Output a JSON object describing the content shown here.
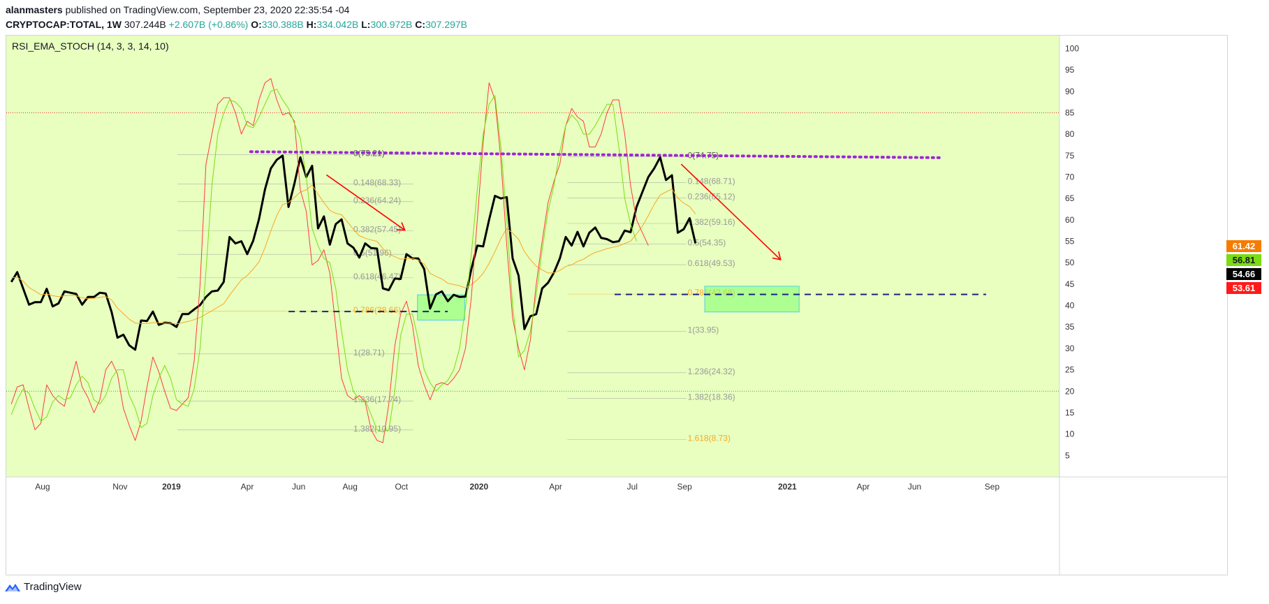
{
  "header": {
    "author": "alanmasters",
    "published": " published on TradingView.com, September 23, 2020 22:35:54 -04",
    "symbol": "CRYPTOCAP:TOTAL, 1W",
    "last": "307.244B",
    "change": "+2.607B (+0.86%)",
    "o_label": "O:",
    "o_val": "330.388B",
    "h_label": "H:",
    "h_val": "334.042B",
    "l_label": "L:",
    "l_val": "300.972B",
    "c_label": "C:",
    "c_val": "307.297B"
  },
  "indicator": {
    "label": "RSI_EMA_STOCH (14, 3, 3, 14, 10)"
  },
  "footer": {
    "brand": "TradingView"
  },
  "price_tags": [
    {
      "value": "61.42",
      "bg": "#f57c00",
      "fg": "#ffffff"
    },
    {
      "value": "56.81",
      "bg": "#7cdb14",
      "fg": "#131722"
    },
    {
      "value": "54.66",
      "bg": "#000000",
      "fg": "#ffffff"
    },
    {
      "value": "53.61",
      "bg": "#ff1a1a",
      "fg": "#ffffff"
    }
  ],
  "chart_data": {
    "type": "line",
    "background": "#e8ffbf",
    "ylim": [
      0,
      103
    ],
    "y_ticks": [
      100,
      95,
      90,
      85,
      80,
      75,
      70,
      65,
      60,
      55,
      50,
      45,
      40,
      35,
      30,
      25,
      20,
      15,
      10,
      5
    ],
    "x_ticks": [
      {
        "label": "Aug",
        "date": "2018-08-01",
        "bold": false
      },
      {
        "label": "Nov",
        "date": "2018-11-01",
        "bold": false
      },
      {
        "label": "2019",
        "date": "2019-01-01",
        "bold": true
      },
      {
        "label": "Apr",
        "date": "2019-04-01",
        "bold": false
      },
      {
        "label": "Jun",
        "date": "2019-06-01",
        "bold": false
      },
      {
        "label": "Aug",
        "date": "2019-08-01",
        "bold": false
      },
      {
        "label": "Oct",
        "date": "2019-10-01",
        "bold": false
      },
      {
        "label": "2020",
        "date": "2020-01-01",
        "bold": true
      },
      {
        "label": "Apr",
        "date": "2020-04-01",
        "bold": false
      },
      {
        "label": "Jul",
        "date": "2020-07-01",
        "bold": false
      },
      {
        "label": "Sep",
        "date": "2020-09-01",
        "bold": false
      },
      {
        "label": "2021",
        "date": "2021-01-01",
        "bold": true
      },
      {
        "label": "Apr",
        "date": "2021-04-01",
        "bold": false
      },
      {
        "label": "Jun",
        "date": "2021-06-01",
        "bold": false
      },
      {
        "label": "Sep",
        "date": "2021-09-01",
        "bold": false
      }
    ],
    "x_domain": [
      "2018-06-19",
      "2021-11-20"
    ],
    "levels": [
      {
        "name": "overbought",
        "value": 85,
        "color": "#e53935"
      },
      {
        "name": "oversold",
        "value": 20,
        "color": "#43a047"
      }
    ],
    "series": [
      {
        "name": "RSI",
        "color": "#000000",
        "start": "2018-06-25",
        "values": [
          45.5,
          47.8,
          44,
          40.2,
          40.8,
          40.8,
          43.9,
          39.8,
          40.5,
          43.3,
          43,
          42.7,
          40.2,
          42,
          42,
          43,
          42.8,
          38.5,
          32.5,
          33.2,
          30.7,
          29.7,
          36.5,
          36.4,
          38.6,
          35.5,
          36,
          35.9,
          35,
          38,
          38,
          39.1,
          40.1,
          42,
          43.3,
          43.5,
          45.5,
          56,
          54.5,
          55,
          52,
          55.1,
          60.2,
          67.1,
          72,
          74,
          75,
          63,
          68.5,
          74.6,
          70,
          72.6,
          58,
          60.8,
          54.2,
          59,
          60.1,
          54.5,
          53.5,
          51.2,
          54.5,
          53.4,
          53.3,
          44,
          43.6,
          46.3,
          46.2,
          52,
          51,
          51,
          48.5,
          39.3,
          42.6,
          43.3,
          41,
          42.5,
          42,
          42.1,
          48.5,
          54,
          53.8,
          60,
          65.6,
          65,
          65.3,
          51,
          47,
          34.5,
          37.5,
          38,
          44,
          45.3,
          47.7,
          51,
          56,
          54,
          57.2,
          53.8,
          57,
          58.2,
          55.8,
          55.5,
          54.8,
          55,
          57.5,
          57.1,
          63,
          66.5,
          70,
          72,
          74.6,
          69.3,
          70.4,
          57,
          57.8,
          60.4,
          54.5
        ]
      },
      {
        "name": "EMA",
        "color": "#f9a825",
        "start": "2018-06-25",
        "values": [
          46.5,
          46.6,
          45.7,
          44.2,
          43.4,
          42.5,
          42.7,
          42.3,
          42.1,
          42.3,
          42.4,
          42.3,
          41.8,
          41.6,
          41.7,
          41.9,
          42.1,
          41.3,
          39.4,
          38.1,
          36.8,
          35.9,
          35.8,
          35.8,
          36,
          36,
          35.9,
          35.9,
          35.7,
          36,
          36.3,
          36.7,
          37.2,
          38,
          38.8,
          39.6,
          40.4,
          42.4,
          44.2,
          46,
          47,
          48.5,
          50.2,
          53.5,
          57.4,
          61,
          63.6,
          64,
          65.2,
          66.5,
          67,
          68.1,
          66,
          64,
          62.2,
          61.5,
          61.2,
          59.5,
          57.8,
          56.3,
          55.7,
          55.3,
          55,
          53.3,
          52,
          51.4,
          50.8,
          51,
          51,
          50.6,
          49.7,
          47.5,
          46.8,
          46.2,
          45.2,
          44.9,
          44.6,
          44.1,
          44.9,
          46,
          47.5,
          49.8,
          52.6,
          55.6,
          58,
          56.9,
          55.5,
          52.6,
          50.7,
          49.2,
          48.3,
          47.6,
          47.6,
          48.2,
          49.1,
          49.5,
          50.3,
          50.8,
          51.7,
          52.4,
          52.8,
          53.3,
          53.6,
          53.9,
          54.5,
          55,
          56.7,
          58.5,
          61,
          63.6,
          65.8,
          66.5,
          67.2,
          65.1,
          63.9,
          63.1,
          61.4
        ]
      },
      {
        "name": "Stoch K",
        "color": "#ff3b3b",
        "start": "2018-06-25",
        "values": [
          17,
          21,
          21.5,
          16,
          11,
          12.5,
          21.5,
          19,
          17.5,
          16.5,
          22,
          27,
          21,
          18.5,
          15,
          18,
          25,
          27,
          24,
          16,
          12,
          8.5,
          13,
          21,
          28,
          24.5,
          20,
          16,
          15.5,
          17,
          18.5,
          27,
          45,
          73,
          80,
          87,
          88.5,
          88.5,
          85,
          80,
          83,
          82,
          88,
          92,
          93,
          88,
          84.5,
          85,
          83,
          67,
          62,
          49.5,
          50.5,
          53,
          47.5,
          35,
          23,
          19,
          18,
          19,
          17.5,
          11,
          8.5,
          8,
          17,
          30.5,
          38,
          41,
          35.5,
          26,
          21.5,
          18,
          21.5,
          22,
          21.5,
          23,
          25,
          30,
          42,
          60,
          78,
          92,
          88,
          74,
          54,
          37,
          30,
          25,
          32,
          45,
          55,
          64,
          69,
          73,
          82,
          86,
          84,
          83,
          77,
          77,
          80,
          85,
          88,
          88,
          80,
          68,
          60,
          57,
          54
        ]
      },
      {
        "name": "Stoch D",
        "color": "#7cdb14",
        "start": "2018-06-25",
        "values": [
          14.5,
          18,
          20.5,
          19.5,
          16,
          13,
          14,
          17.5,
          19,
          18,
          18.5,
          21.5,
          23.5,
          22,
          18,
          17,
          19,
          23,
          25,
          25,
          19,
          16,
          11.5,
          12.5,
          19,
          23,
          26,
          23,
          18,
          17,
          16.5,
          20.5,
          30,
          48,
          68,
          80,
          85,
          88,
          87.5,
          86,
          82,
          81.5,
          84,
          87,
          90,
          90.5,
          88,
          86,
          82.5,
          79,
          70,
          58,
          54,
          51,
          50,
          44,
          34,
          25,
          20,
          18,
          18,
          14.5,
          11,
          10.5,
          11,
          20,
          33,
          38,
          38,
          32,
          25,
          22,
          20,
          21.5,
          22.5,
          25,
          30,
          39.5,
          52,
          67,
          80,
          87,
          89,
          77,
          60,
          40,
          28,
          29.5,
          34,
          42.5,
          53,
          62,
          68,
          76,
          82,
          84.5,
          83,
          80,
          80,
          82,
          84.5,
          87,
          87,
          77,
          65,
          59,
          55
        ]
      }
    ],
    "fib_left": {
      "x_from": "2019-01-08",
      "x_to": "2019-10-15",
      "levels": [
        {
          "label": "0(75.21)",
          "value": 75.21,
          "color": "#555555"
        },
        {
          "label": "0.148(68.33)",
          "value": 68.33,
          "color": "#999999"
        },
        {
          "label": "0.236(64.24)",
          "value": 64.24,
          "color": "#999999"
        },
        {
          "label": "0.382(57.45)",
          "value": 57.45,
          "color": "#999999"
        },
        {
          "label": "0.5(51.96)",
          "value": 51.96,
          "color": "#999999"
        },
        {
          "label": "0.618(46.47)",
          "value": 46.47,
          "color": "#999999"
        },
        {
          "label": "0.786(38.66)",
          "value": 38.66,
          "color": "#f9a825"
        },
        {
          "label": "1(28.71)",
          "value": 28.71,
          "color": "#999999"
        },
        {
          "label": "1.236(17.74)",
          "value": 17.74,
          "color": "#999999"
        },
        {
          "label": "1.382(10.95)",
          "value": 10.95,
          "color": "#999999"
        }
      ]
    },
    "fib_right": {
      "x_from": "2020-04-15",
      "x_to": "2020-09-03",
      "levels": [
        {
          "label": "0(74.75)",
          "value": 74.75,
          "color": "#555555"
        },
        {
          "label": "0.148(68.71)",
          "value": 68.71,
          "color": "#999999"
        },
        {
          "label": "0.236(65.12)",
          "value": 65.12,
          "color": "#999999"
        },
        {
          "label": "0.382(59.16)",
          "value": 59.16,
          "color": "#999999"
        },
        {
          "label": "0.5(54.35)",
          "value": 54.35,
          "color": "#999999"
        },
        {
          "label": "0.618(49.53)",
          "value": 49.53,
          "color": "#999999"
        },
        {
          "label": "0.786(42.68)",
          "value": 42.68,
          "color": "#f9a825"
        },
        {
          "label": "1(33.95)",
          "value": 33.95,
          "color": "#999999"
        },
        {
          "label": "1.236(24.32)",
          "value": 24.32,
          "color": "#999999"
        },
        {
          "label": "1.382(18.36)",
          "value": 18.36,
          "color": "#999999"
        },
        {
          "label": "1.618(8.73)",
          "value": 8.73,
          "color": "#f9a825"
        }
      ]
    },
    "annotations": {
      "purple_dotted": {
        "color": "#9c27d6",
        "from": [
          "2019-04-05",
          75.9
        ],
        "to": [
          "2021-07-05",
          74.5
        ]
      },
      "blue_dashed": [
        {
          "color": "#1a237e",
          "from": [
            "2019-05-20",
            38.6
          ],
          "to": [
            "2019-11-25",
            38.6
          ]
        },
        {
          "color": "#1a237e",
          "from": [
            "2020-06-10",
            42.6
          ],
          "to": [
            "2021-08-25",
            42.6
          ]
        }
      ],
      "green_boxes": [
        {
          "from": [
            "2019-10-20",
            42.5
          ],
          "to": [
            "2019-12-15",
            36.6
          ]
        },
        {
          "from": [
            "2020-09-25",
            44.5
          ],
          "to": [
            "2021-01-15",
            38.5
          ]
        }
      ],
      "red_arrows": [
        {
          "color": "#ff0000",
          "from": [
            "2019-07-04",
            70.5
          ],
          "to": [
            "2019-10-05",
            57.6
          ]
        },
        {
          "color": "#ff0000",
          "from": [
            "2020-08-28",
            73.0
          ],
          "to": [
            "2020-12-24",
            50.7
          ]
        }
      ]
    }
  }
}
